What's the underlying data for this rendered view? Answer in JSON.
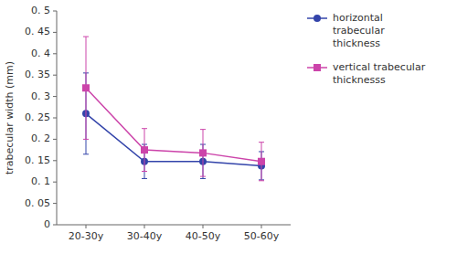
{
  "chart_data": {
    "type": "line",
    "categories": [
      "20-30y",
      "30-40y",
      "40-50y",
      "50-60y"
    ],
    "series": [
      {
        "name": "horizontal\ntrabecular\nthickness",
        "color": "#3344aa",
        "marker": "circle",
        "values": [
          0.26,
          0.148,
          0.148,
          0.138
        ],
        "errors": [
          0.095,
          0.04,
          0.04,
          0.033
        ]
      },
      {
        "name": "vertical trabecular\nthicknesss",
        "color": "#cc44aa",
        "marker": "square",
        "values": [
          0.32,
          0.175,
          0.168,
          0.148
        ],
        "errors": [
          0.12,
          0.05,
          0.055,
          0.045
        ]
      }
    ],
    "y_label": "trabecular width (mm)",
    "ylim": [
      0,
      0.5
    ],
    "yticks": [
      0,
      {
        "value": 0.05,
        "label": "0. 05"
      },
      {
        "value": 0.1,
        "label": "0. 1"
      },
      {
        "value": 0.15,
        "label": "0. 15"
      },
      {
        "value": 0.2,
        "label": "0. 2"
      },
      {
        "value": 0.25,
        "label": "0. 25"
      },
      {
        "value": 0.3,
        "label": "0. 3"
      },
      {
        "value": 0.35,
        "label": "0. 35"
      },
      {
        "value": 0.4,
        "label": "0. 4"
      },
      {
        "value": 0.45,
        "label": "0. 45"
      },
      {
        "value": 0.5,
        "label": "0. 5"
      }
    ],
    "grid": false,
    "legend": "right"
  }
}
